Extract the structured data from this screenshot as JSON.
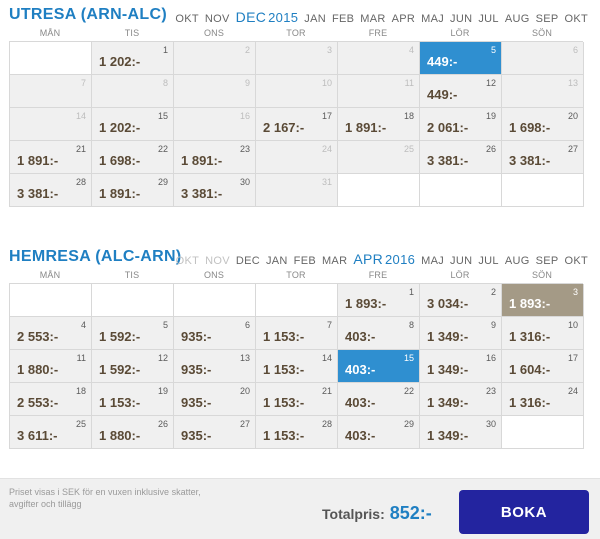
{
  "outbound": {
    "title": "UTRESA (ARN-ALC)",
    "months": [
      {
        "label": "OKT",
        "state": "normal"
      },
      {
        "label": "NOV",
        "state": "normal"
      },
      {
        "label": "DEC",
        "state": "active",
        "year": "2015"
      },
      {
        "label": "JAN",
        "state": "normal"
      },
      {
        "label": "FEB",
        "state": "normal"
      },
      {
        "label": "MAR",
        "state": "normal"
      },
      {
        "label": "APR",
        "state": "normal"
      },
      {
        "label": "MAJ",
        "state": "normal"
      },
      {
        "label": "JUN",
        "state": "normal"
      },
      {
        "label": "JUL",
        "state": "normal"
      },
      {
        "label": "AUG",
        "state": "normal"
      },
      {
        "label": "SEP",
        "state": "normal"
      },
      {
        "label": "OKT",
        "state": "normal"
      }
    ],
    "daynames": [
      "MÅN",
      "TIS",
      "ONS",
      "TOR",
      "FRE",
      "LÖR",
      "SÖN"
    ],
    "cells": [
      {
        "type": "empty"
      },
      {
        "day": "1",
        "price": "1 202:-"
      },
      {
        "day": "2",
        "price": ""
      },
      {
        "day": "3",
        "price": ""
      },
      {
        "day": "4",
        "price": ""
      },
      {
        "day": "5",
        "price": "449:-",
        "state": "blue"
      },
      {
        "day": "6",
        "price": ""
      },
      {
        "day": "7",
        "price": ""
      },
      {
        "day": "8",
        "price": ""
      },
      {
        "day": "9",
        "price": ""
      },
      {
        "day": "10",
        "price": ""
      },
      {
        "day": "11",
        "price": ""
      },
      {
        "day": "12",
        "price": "449:-"
      },
      {
        "day": "13",
        "price": ""
      },
      {
        "day": "14",
        "price": ""
      },
      {
        "day": "15",
        "price": "1 202:-"
      },
      {
        "day": "16",
        "price": ""
      },
      {
        "day": "17",
        "price": "2 167:-"
      },
      {
        "day": "18",
        "price": "1 891:-"
      },
      {
        "day": "19",
        "price": "2 061:-"
      },
      {
        "day": "20",
        "price": "1 698:-"
      },
      {
        "day": "21",
        "price": "1 891:-"
      },
      {
        "day": "22",
        "price": "1 698:-"
      },
      {
        "day": "23",
        "price": "1 891:-"
      },
      {
        "day": "24",
        "price": ""
      },
      {
        "day": "25",
        "price": ""
      },
      {
        "day": "26",
        "price": "3 381:-"
      },
      {
        "day": "27",
        "price": "3 381:-"
      },
      {
        "day": "28",
        "price": "3 381:-"
      },
      {
        "day": "29",
        "price": "1 891:-"
      },
      {
        "day": "30",
        "price": "3 381:-"
      },
      {
        "day": "31",
        "price": ""
      },
      {
        "type": "blank"
      },
      {
        "type": "blank"
      },
      {
        "type": "blank"
      }
    ]
  },
  "return": {
    "title": "HEMRESA (ALC-ARN)",
    "months": [
      {
        "label": "OKT",
        "state": "disabled"
      },
      {
        "label": "NOV",
        "state": "disabled"
      },
      {
        "label": "DEC",
        "state": "normal"
      },
      {
        "label": "JAN",
        "state": "normal"
      },
      {
        "label": "FEB",
        "state": "normal"
      },
      {
        "label": "MAR",
        "state": "normal"
      },
      {
        "label": "APR",
        "state": "active",
        "year": "2016"
      },
      {
        "label": "MAJ",
        "state": "normal"
      },
      {
        "label": "JUN",
        "state": "normal"
      },
      {
        "label": "JUL",
        "state": "normal"
      },
      {
        "label": "AUG",
        "state": "normal"
      },
      {
        "label": "SEP",
        "state": "normal"
      },
      {
        "label": "OKT",
        "state": "normal"
      }
    ],
    "daynames": [
      "MÅN",
      "TIS",
      "ONS",
      "TOR",
      "FRE",
      "LÖR",
      "SÖN"
    ],
    "cells": [
      {
        "type": "empty"
      },
      {
        "type": "empty"
      },
      {
        "type": "empty"
      },
      {
        "type": "empty"
      },
      {
        "day": "1",
        "price": "1 893:-"
      },
      {
        "day": "2",
        "price": "3 034:-"
      },
      {
        "day": "3",
        "price": "1 893:-",
        "state": "brown"
      },
      {
        "day": "4",
        "price": "2 553:-"
      },
      {
        "day": "5",
        "price": "1 592:-"
      },
      {
        "day": "6",
        "price": "935:-"
      },
      {
        "day": "7",
        "price": "1 153:-"
      },
      {
        "day": "8",
        "price": "403:-"
      },
      {
        "day": "9",
        "price": "1 349:-"
      },
      {
        "day": "10",
        "price": "1 316:-"
      },
      {
        "day": "11",
        "price": "1 880:-"
      },
      {
        "day": "12",
        "price": "1 592:-"
      },
      {
        "day": "13",
        "price": "935:-"
      },
      {
        "day": "14",
        "price": "1 153:-"
      },
      {
        "day": "15",
        "price": "403:-",
        "state": "blue"
      },
      {
        "day": "16",
        "price": "1 349:-"
      },
      {
        "day": "17",
        "price": "1 604:-"
      },
      {
        "day": "18",
        "price": "2 553:-"
      },
      {
        "day": "19",
        "price": "1 153:-"
      },
      {
        "day": "20",
        "price": "935:-"
      },
      {
        "day": "21",
        "price": "1 153:-"
      },
      {
        "day": "22",
        "price": "403:-"
      },
      {
        "day": "23",
        "price": "1 349:-"
      },
      {
        "day": "24",
        "price": "1 316:-"
      },
      {
        "day": "25",
        "price": "3 611:-"
      },
      {
        "day": "26",
        "price": "1 880:-"
      },
      {
        "day": "27",
        "price": "935:-"
      },
      {
        "day": "28",
        "price": "1 153:-"
      },
      {
        "day": "29",
        "price": "403:-"
      },
      {
        "day": "30",
        "price": "1 349:-"
      },
      {
        "type": "blank"
      }
    ]
  },
  "footer": {
    "disclaimer": "Priset visas i SEK för en vuxen inklusive skatter, avgifter och tillägg",
    "total_label": "Totalpris:",
    "total_value": "852:-",
    "book_label": "BOKA"
  },
  "colors": {
    "accent": "#1f7fc2",
    "selected_blue": "#2f8fd0",
    "selected_brown": "#a49a86",
    "book_button": "#23249f",
    "price_text": "#5a4a36"
  }
}
